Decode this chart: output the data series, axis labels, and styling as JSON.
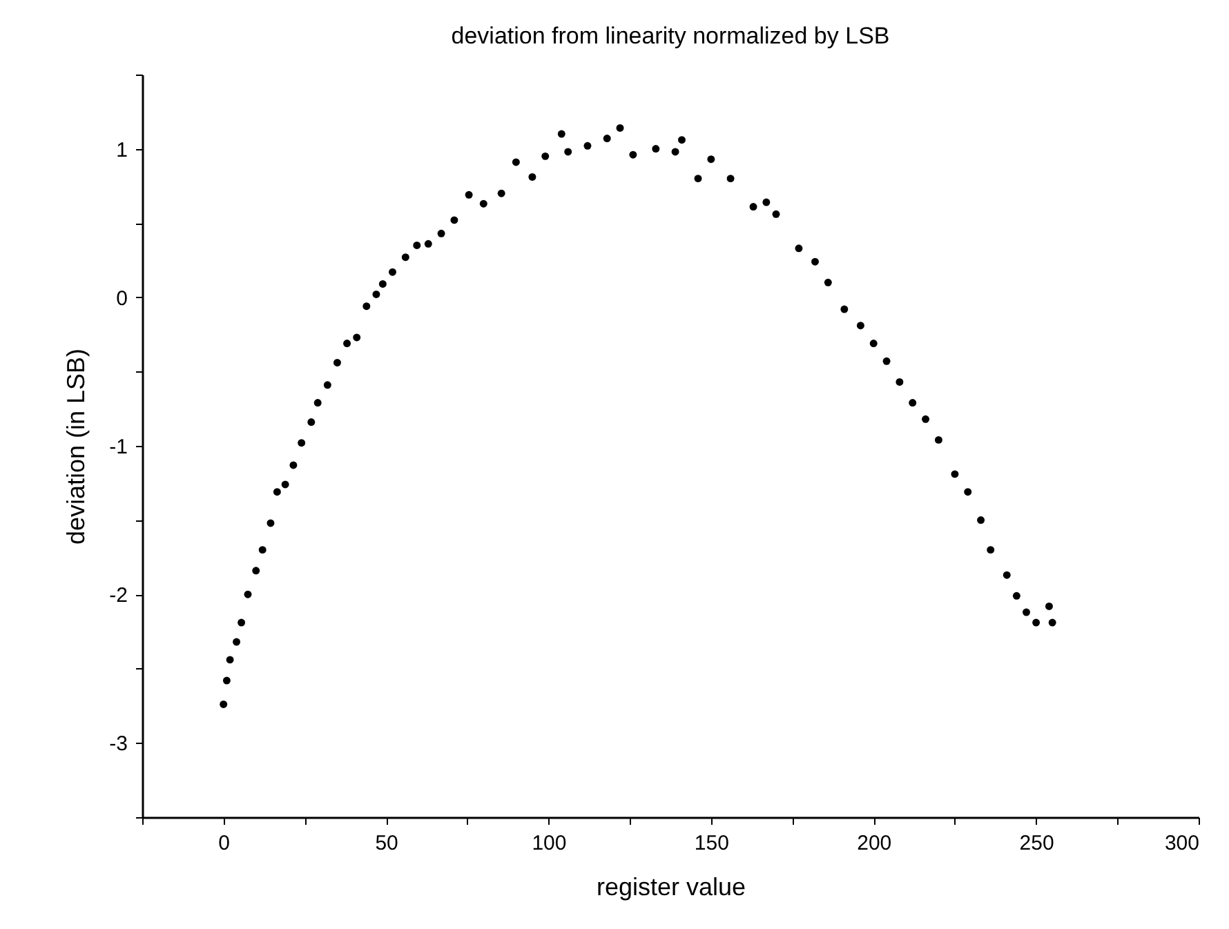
{
  "chart_data": {
    "type": "scatter",
    "title": "deviation from linearity normalized by LSB",
    "xlabel": "register value",
    "ylabel": "deviation (in LSB)",
    "x": [
      0,
      1,
      2,
      4,
      5.5,
      7.5,
      10,
      12,
      14.5,
      16.5,
      19,
      21.5,
      24,
      27,
      29,
      32,
      35,
      38,
      41,
      44,
      47,
      49,
      52,
      56,
      59.5,
      63,
      67,
      71,
      75.5,
      80,
      85.5,
      90,
      95,
      99,
      104,
      106,
      112,
      118,
      122,
      126,
      133,
      139,
      141,
      146,
      150,
      156,
      163,
      167,
      170,
      177,
      182,
      186,
      191,
      196,
      200,
      204,
      208,
      212,
      216,
      220,
      225,
      229,
      233,
      236,
      241,
      244,
      247,
      250,
      254,
      255
    ],
    "series": [
      {
        "color": "#000000",
        "values": [
          -2.74,
          -2.58,
          -2.44,
          -2.32,
          -2.19,
          -2.0,
          -1.84,
          -1.7,
          -1.52,
          -1.31,
          -1.26,
          -1.13,
          -0.98,
          -0.84,
          -0.71,
          -0.59,
          -0.44,
          -0.31,
          -0.27,
          -0.06,
          0.02,
          0.09,
          0.17,
          0.27,
          0.35,
          0.36,
          0.43,
          0.52,
          0.69,
          0.63,
          0.7,
          0.91,
          0.81,
          0.95,
          1.1,
          0.98,
          1.02,
          1.07,
          1.14,
          0.96,
          1.0,
          0.98,
          1.06,
          0.8,
          0.93,
          0.8,
          0.61,
          0.64,
          0.56,
          0.33,
          0.24,
          0.1,
          -0.08,
          -0.19,
          -0.31,
          -0.43,
          -0.57,
          -0.71,
          -0.82,
          -0.96,
          -1.19,
          -1.31,
          -1.5,
          -1.7,
          -1.87,
          -2.01,
          -2.12,
          -2.19,
          -2.08,
          -2.19
        ]
      }
    ],
    "xlim": [
      -25,
      300
    ],
    "ylim": [
      -3.5,
      1.5
    ],
    "xticks": [
      {
        "value": -25,
        "label": null
      },
      0,
      {
        "value": 25,
        "label": null
      },
      50,
      {
        "value": 75,
        "label": null
      },
      100,
      {
        "value": 125,
        "label": null
      },
      150,
      {
        "value": 175,
        "label": null
      },
      200,
      {
        "value": 225,
        "label": null
      },
      250,
      {
        "value": 275,
        "label": null
      },
      300
    ],
    "yticks": [
      {
        "value": -3.5,
        "label": null
      },
      -3,
      {
        "value": -2.5,
        "label": null
      },
      -2,
      {
        "value": -1.5,
        "label": null
      },
      -1,
      {
        "value": -0.5,
        "label": null
      },
      0,
      {
        "value": 0.5,
        "label": null
      },
      1,
      {
        "value": 1.5,
        "label": null
      }
    ],
    "marker": "circle",
    "grid": false,
    "legend": false
  }
}
